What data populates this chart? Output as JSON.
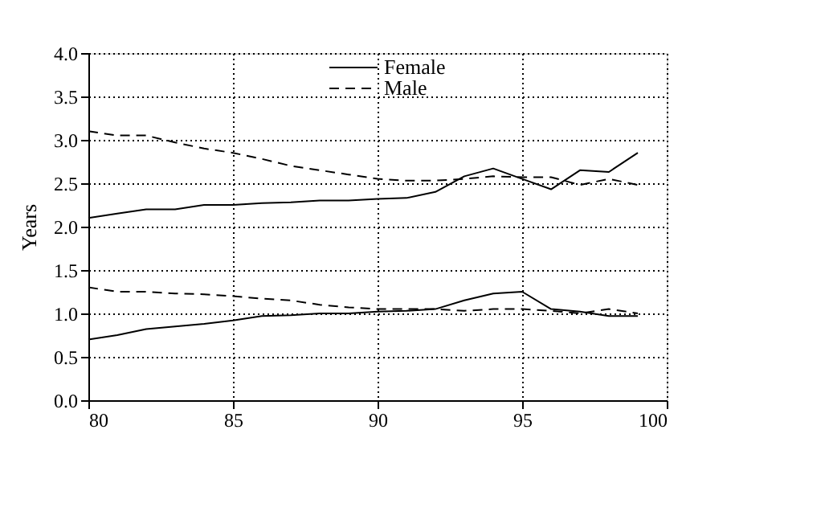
{
  "chart_data": {
    "type": "line",
    "ylabel": "Years",
    "x": [
      80,
      81,
      82,
      83,
      84,
      85,
      86,
      87,
      88,
      89,
      90,
      91,
      92,
      93,
      94,
      95,
      96,
      97,
      98,
      99
    ],
    "series": [
      {
        "name": "Female",
        "color": "#000000",
        "line_style": "solid",
        "values": [
          2.1,
          2.15,
          2.2,
          2.2,
          2.25,
          2.25,
          2.27,
          2.28,
          2.3,
          2.3,
          2.32,
          2.33,
          2.4,
          2.58,
          2.67,
          2.55,
          2.43,
          2.65,
          2.63,
          2.85
        ]
      },
      {
        "name": "Male",
        "color": "#000000",
        "line_style": "dashed",
        "values": [
          3.1,
          3.05,
          3.05,
          2.97,
          2.9,
          2.85,
          2.78,
          2.7,
          2.65,
          2.6,
          2.55,
          2.53,
          2.53,
          2.55,
          2.58,
          2.57,
          2.57,
          2.48,
          2.55,
          2.48
        ]
      },
      {
        "color": "#000000",
        "line_style": "solid",
        "values": [
          0.7,
          0.75,
          0.82,
          0.85,
          0.88,
          0.92,
          0.97,
          0.98,
          1.0,
          1.0,
          1.02,
          1.03,
          1.05,
          1.15,
          1.23,
          1.25,
          1.05,
          1.02,
          0.97,
          0.97
        ]
      },
      {
        "color": "#000000",
        "line_style": "dashed",
        "values": [
          1.3,
          1.25,
          1.25,
          1.23,
          1.22,
          1.2,
          1.17,
          1.15,
          1.1,
          1.07,
          1.05,
          1.05,
          1.05,
          1.03,
          1.05,
          1.05,
          1.03,
          1.0,
          1.05,
          1.0
        ]
      }
    ],
    "xlim": [
      80,
      100
    ],
    "xticks": [
      80,
      85,
      90,
      95,
      100
    ],
    "ylim": [
      0,
      4
    ],
    "yticks": [
      {
        "value": 0,
        "label": "0.0"
      },
      {
        "value": 0.5,
        "label": "0.5"
      },
      {
        "value": 1,
        "label": "1.0"
      },
      {
        "value": 1.5,
        "label": "1.5"
      },
      {
        "value": 2,
        "label": "2.0"
      },
      {
        "value": 2.5,
        "label": "2.5"
      },
      {
        "value": 3,
        "label": "3.0"
      },
      {
        "value": 3.5,
        "label": "3.5"
      },
      {
        "value": 4,
        "label": "4.0"
      }
    ],
    "grid": true,
    "legend": "top",
    "marker": "none"
  }
}
